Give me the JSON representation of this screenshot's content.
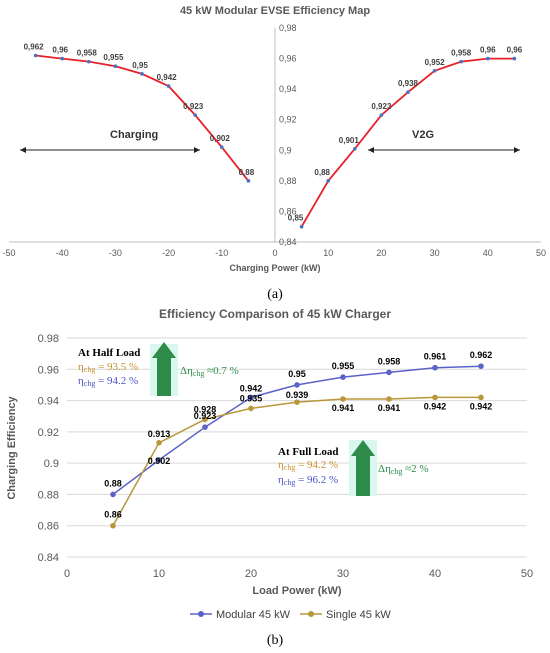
{
  "chart_data": [
    {
      "type": "line",
      "title": "45 kW Modular EVSE Efficiency Map",
      "xlabel": "Charging Power (kW)",
      "ylabel": "",
      "xlim": [
        -50,
        50
      ],
      "ylim": [
        0.84,
        0.98
      ],
      "x_ticks": [
        "-50",
        "-40",
        "-30",
        "-20",
        "-10",
        "0",
        "10",
        "20",
        "30",
        "40",
        "50"
      ],
      "y_ticks": [
        "0,84",
        "0,86",
        "0,88",
        "0,9",
        "0,92",
        "0,94",
        "0,96",
        "0,98"
      ],
      "series": [
        {
          "segment": "charging",
          "x": [
            -45,
            -40,
            -35,
            -30,
            -25,
            -20,
            -15,
            -10,
            -5
          ],
          "y": [
            0.962,
            0.96,
            0.958,
            0.955,
            0.95,
            0.942,
            0.923,
            0.902,
            0.88
          ],
          "labels": [
            "0,962",
            "0,96",
            "0,958",
            "0,955",
            "0,95",
            "0,942",
            "0,923",
            "0,902",
            "0,88"
          ]
        },
        {
          "segment": "v2g",
          "x": [
            5,
            10,
            15,
            20,
            25,
            30,
            35,
            40,
            45
          ],
          "y": [
            0.85,
            0.88,
            0.901,
            0.923,
            0.938,
            0.952,
            0.958,
            0.96,
            0.96
          ],
          "labels": [
            "0,85",
            "0,88",
            "0,901",
            "0,923",
            "0,938",
            "0,952",
            "0,958",
            "0,96",
            "0,96"
          ]
        }
      ],
      "annotations": {
        "charging": "Charging",
        "v2g": "V2G"
      },
      "line_color": "#e8202a",
      "marker_color": "#4472c4",
      "panel_label": "(a)"
    },
    {
      "type": "line",
      "title": "Efficiency Comparison of 45 kW Charger",
      "xlabel": "Load Power (kW)",
      "ylabel": "Charging Efficiency",
      "xlim": [
        0,
        50
      ],
      "ylim": [
        0.84,
        0.98
      ],
      "x_ticks": [
        "0",
        "10",
        "20",
        "30",
        "40",
        "50"
      ],
      "y_ticks": [
        "0.84",
        "0.86",
        "0.88",
        "0.9",
        "0.92",
        "0.94",
        "0.96",
        "0.98"
      ],
      "x": [
        5,
        10,
        15,
        20,
        25,
        30,
        35,
        40,
        45
      ],
      "series": [
        {
          "name": "Modular 45 kW",
          "color": "#5b63c7",
          "values": [
            0.88,
            0.902,
            0.923,
            0.942,
            0.95,
            0.955,
            0.958,
            0.961,
            0.962
          ],
          "labels": [
            "0.88",
            "0.902",
            "0.923",
            "0.942",
            "0.95",
            "0.955",
            "0.958",
            "0.961",
            "0.962"
          ]
        },
        {
          "name": "Single 45 kW",
          "color": "#b8963a",
          "values": [
            0.86,
            0.913,
            0.928,
            0.935,
            0.939,
            0.941,
            0.941,
            0.942,
            0.942
          ],
          "labels": [
            "0.86",
            "0.913",
            "0.928",
            "0.935",
            "0.939",
            "0.941",
            "0.941",
            "0.942",
            "0.942"
          ]
        }
      ],
      "legend": "bottom",
      "annotations": {
        "half_load_title": "At Half Load",
        "half_load_single": "η",
        "half_load_single_sub": "chg",
        "half_load_single_val": " = 93.5 %",
        "half_load_modular": "η",
        "half_load_modular_sub": "chg",
        "half_load_modular_val": " = 94.2 %",
        "half_delta": "Δη",
        "half_delta_sub": "chg",
        "half_delta_val": " ≈0.7 %",
        "full_load_title": "At Full Load",
        "full_load_single": "η",
        "full_load_single_sub": "chg",
        "full_load_single_val": " = 94.2 %",
        "full_load_modular": "η",
        "full_load_modular_sub": "chg",
        "full_load_modular_val": " = 96.2 %",
        "full_delta": "Δη",
        "full_delta_sub": "chg",
        "full_delta_val": " ≈2 %"
      },
      "panel_label": "(b)"
    }
  ]
}
